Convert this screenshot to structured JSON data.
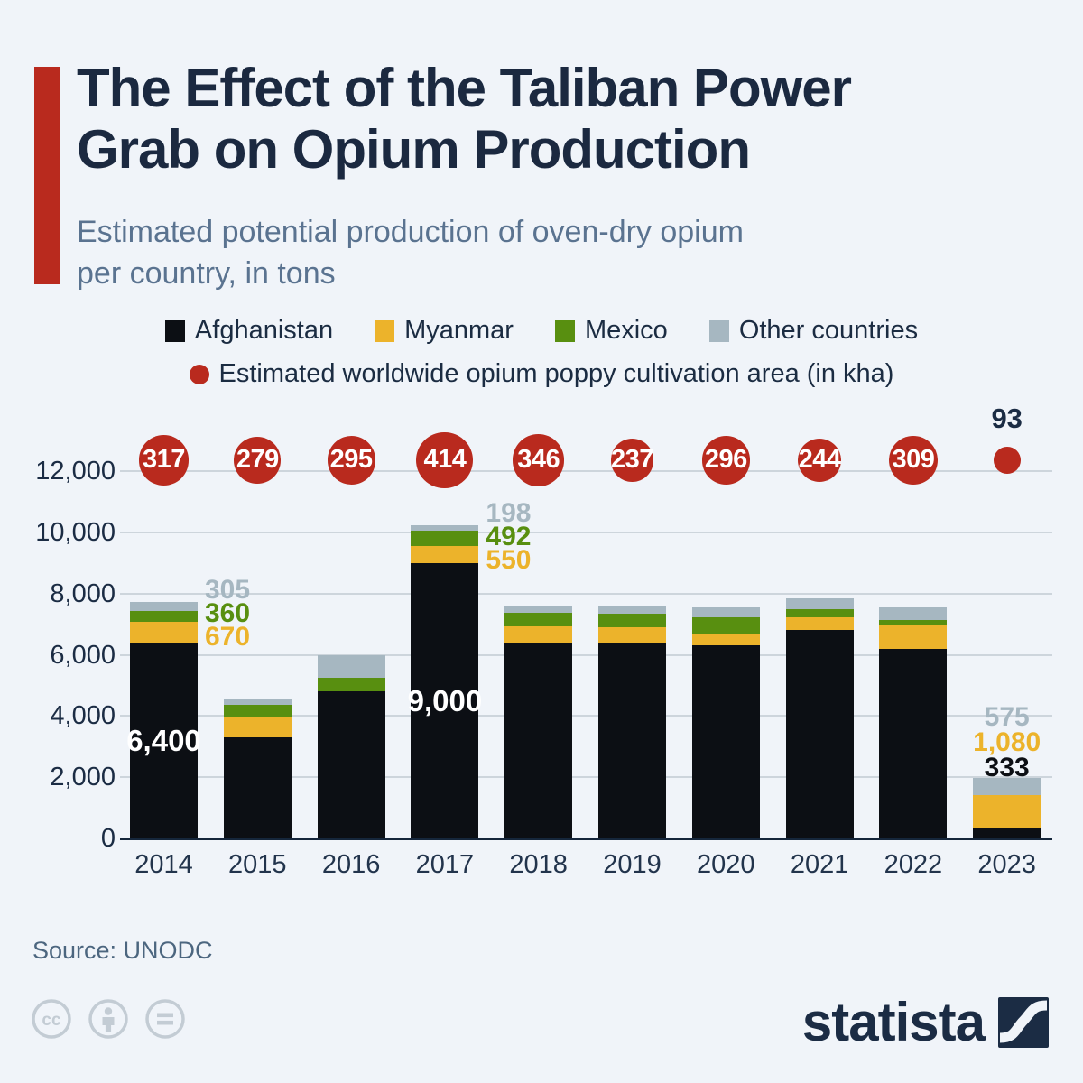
{
  "page": {
    "background": "#f0f4f9",
    "accent_color": "#b92a1e",
    "title_color": "#1b2940",
    "grid_color": "#cdd5dc",
    "axis_color": "#15263b"
  },
  "header": {
    "title_line1": "The Effect of the Taliban Power",
    "title_line2": "Grab on Opium Production",
    "subtitle_line1": "Estimated potential production of oven-dry opium",
    "subtitle_line2": "per country, in tons"
  },
  "chart_data": {
    "type": "bar",
    "stacked": true,
    "categories": [
      "2014",
      "2015",
      "2016",
      "2017",
      "2018",
      "2019",
      "2020",
      "2021",
      "2022",
      "2023"
    ],
    "series": [
      {
        "name": "Afghanistan",
        "key": "afghanistan",
        "color": "#0c0f14",
        "values": [
          6400,
          3300,
          4800,
          9000,
          6400,
          6400,
          6300,
          6800,
          6200,
          333
        ]
      },
      {
        "name": "Myanmar",
        "key": "myanmar",
        "color": "#ecb32b",
        "values": [
          670,
          650,
          0,
          550,
          540,
          500,
          405,
          420,
          790,
          1080
        ]
      },
      {
        "name": "Mexico",
        "key": "mexico",
        "color": "#588f10",
        "values": [
          360,
          420,
          440,
          492,
          440,
          450,
          520,
          280,
          150,
          0
        ]
      },
      {
        "name": "Other countries",
        "key": "other",
        "color": "#a6b7c1",
        "values": [
          305,
          180,
          760,
          198,
          220,
          250,
          330,
          350,
          420,
          575
        ]
      }
    ],
    "bubbles": {
      "label": "Estimated worldwide opium poppy cultivation area (in kha)",
      "color": "#b92a1e",
      "values": [
        317,
        279,
        295,
        414,
        346,
        237,
        296,
        244,
        309,
        93
      ]
    },
    "ylabel": "",
    "xlabel": "",
    "ylim": [
      0,
      12000
    ],
    "yticks": [
      "0",
      "2,000",
      "4,000",
      "6,000",
      "8,000",
      "10,000",
      "12,000"
    ],
    "grid": true,
    "inside_labels": [
      {
        "year": "2014",
        "text": "6,400"
      },
      {
        "year": "2017",
        "text": "9,000"
      }
    ],
    "callouts": [
      {
        "year": "2014",
        "placement": "right",
        "items": [
          {
            "text": "305",
            "series": "other"
          },
          {
            "text": "360",
            "series": "mexico"
          },
          {
            "text": "670",
            "series": "myanmar"
          }
        ]
      },
      {
        "year": "2017",
        "placement": "right",
        "items": [
          {
            "text": "198",
            "series": "other"
          },
          {
            "text": "492",
            "series": "mexico"
          },
          {
            "text": "550",
            "series": "myanmar"
          }
        ]
      },
      {
        "year": "2023",
        "placement": "above",
        "items": [
          {
            "text": "575",
            "series": "other"
          },
          {
            "text": "1,080",
            "series": "myanmar"
          },
          {
            "text": "333",
            "series": "afghanistan"
          }
        ]
      }
    ]
  },
  "footer": {
    "source": "Source: UNODC",
    "brand": "statista",
    "cc_glyph": "cc"
  }
}
